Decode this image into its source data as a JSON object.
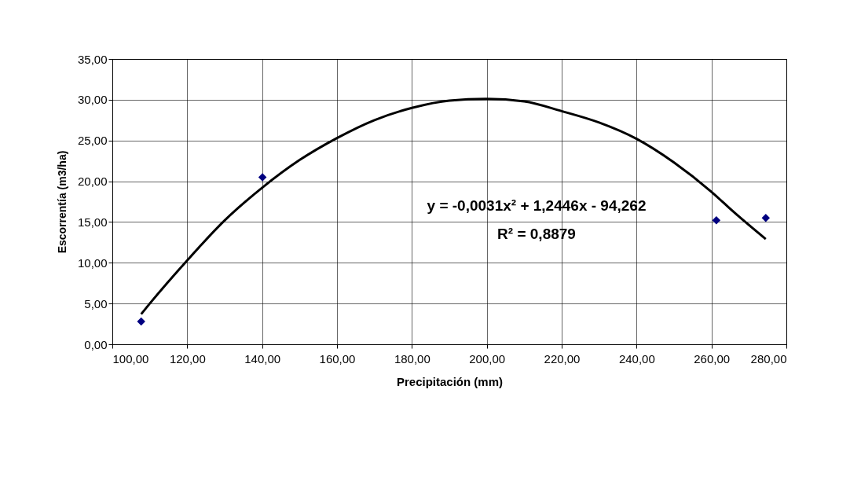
{
  "chart_data": {
    "type": "scatter",
    "xlabel": "Precipitación (mm)",
    "ylabel": "Escorrentía (m3/ha)",
    "xlim": [
      100,
      280
    ],
    "ylim": [
      0,
      35
    ],
    "xticks": [
      {
        "value": 100,
        "label": "100,00"
      },
      {
        "value": 120,
        "label": "120,00"
      },
      {
        "value": 140,
        "label": "140,00"
      },
      {
        "value": 160,
        "label": "160,00"
      },
      {
        "value": 180,
        "label": "180,00"
      },
      {
        "value": 200,
        "label": "200,00"
      },
      {
        "value": 220,
        "label": "220,00"
      },
      {
        "value": 240,
        "label": "240,00"
      },
      {
        "value": 260,
        "label": "260,00"
      },
      {
        "value": 280,
        "label": "280,00"
      }
    ],
    "yticks": [
      {
        "value": 0,
        "label": "0,00"
      },
      {
        "value": 5,
        "label": "5,00"
      },
      {
        "value": 10,
        "label": "10,00"
      },
      {
        "value": 15,
        "label": "15,00"
      },
      {
        "value": 20,
        "label": "20,00"
      },
      {
        "value": 25,
        "label": "25,00"
      },
      {
        "value": 30,
        "label": "30,00"
      },
      {
        "value": 35,
        "label": "35,00"
      }
    ],
    "grid": true,
    "series": [
      {
        "color": "#000080",
        "marker": "diamond",
        "x": [
          107.7,
          140.1,
          261.3,
          274.5
        ],
        "values": [
          2.8,
          20.5,
          15.2,
          15.5
        ]
      },
      {
        "type": "line",
        "color": "#000000",
        "line_style": "solid",
        "marker": "none",
        "x": [
          107.7,
          110,
          120,
          130,
          140,
          150,
          160,
          170,
          180,
          190,
          200,
          210,
          220,
          230,
          240,
          250,
          260,
          266,
          274.5
        ],
        "values": [
          3.7,
          5.0,
          10.3,
          15.2,
          19.2,
          22.6,
          25.3,
          27.5,
          29.0,
          29.9,
          30.1,
          29.8,
          28.6,
          27.2,
          25.2,
          22.3,
          18.7,
          16.2,
          12.9
        ]
      }
    ],
    "annotations": [
      "y = -0,0031x² + 1,2446x - 94,262",
      "R² = 0,8879"
    ]
  }
}
